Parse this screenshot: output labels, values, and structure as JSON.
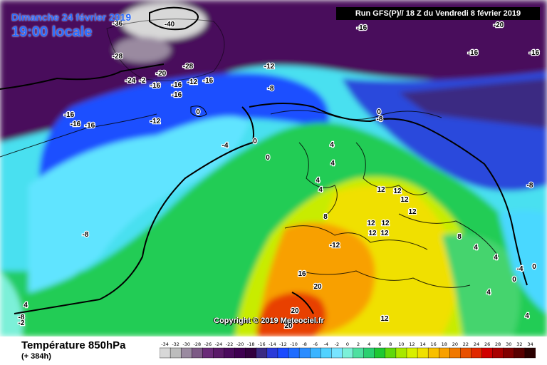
{
  "header": {
    "date_label": "Dimanche 24 février 2019",
    "time_label": "19:00 locale",
    "run_info": "Run GFS(P)// 18 Z du Vendredi 8 février 2019"
  },
  "footer": {
    "variable_title": "Température 850hPa",
    "lead_time": "(+ 384h)",
    "copyright": "Copyright © 2019 Meteociel.fr"
  },
  "map": {
    "labels": [
      {
        "text": "-40"
      },
      {
        "text": "-36"
      },
      {
        "text": "-28"
      },
      {
        "text": "-28"
      },
      {
        "text": "-24"
      },
      {
        "text": "-2"
      },
      {
        "text": "-20"
      },
      {
        "text": "-16"
      },
      {
        "text": "-16"
      },
      {
        "text": "-12"
      },
      {
        "text": "-16"
      },
      {
        "text": "-16"
      },
      {
        "text": "-12"
      },
      {
        "text": "-8"
      },
      {
        "text": "-16"
      },
      {
        "text": "-16"
      },
      {
        "text": "-16"
      },
      {
        "text": "-12"
      },
      {
        "text": "-8"
      },
      {
        "text": "-4"
      },
      {
        "text": "0"
      },
      {
        "text": "0"
      },
      {
        "text": "4"
      },
      {
        "text": "0"
      },
      {
        "text": "-16"
      },
      {
        "text": "-20"
      },
      {
        "text": "-16"
      },
      {
        "text": "-16"
      },
      {
        "text": "0"
      },
      {
        "text": "4"
      },
      {
        "text": "4"
      },
      {
        "text": "4"
      },
      {
        "text": "8"
      },
      {
        "text": "12"
      },
      {
        "text": "12"
      },
      {
        "text": "12"
      },
      {
        "text": "12"
      },
      {
        "text": "12"
      },
      {
        "text": "12"
      },
      {
        "text": "12"
      },
      {
        "text": "-12"
      },
      {
        "text": "12"
      },
      {
        "text": "16"
      },
      {
        "text": "20"
      },
      {
        "text": "20"
      },
      {
        "text": "20"
      },
      {
        "text": "12"
      },
      {
        "text": "8"
      },
      {
        "text": "4"
      },
      {
        "text": "4"
      },
      {
        "text": "4"
      },
      {
        "text": "0"
      },
      {
        "text": "4"
      },
      {
        "text": "4"
      },
      {
        "text": "-8"
      },
      {
        "text": "-8"
      },
      {
        "text": "0"
      },
      {
        "text": "-4"
      },
      {
        "text": "-8"
      },
      {
        "text": "-2"
      }
    ]
  },
  "scale": {
    "values": [
      "-34",
      "-32",
      "-30",
      "-28",
      "-26",
      "-24",
      "-22",
      "-20",
      "-18",
      "-16",
      "-14",
      "-12",
      "-10",
      "-8",
      "-6",
      "-4",
      "-2",
      "0",
      "2",
      "4",
      "6",
      "8",
      "10",
      "12",
      "14",
      "16",
      "18",
      "20",
      "22",
      "24",
      "26",
      "28",
      "30",
      "32",
      "34"
    ],
    "colors": [
      "#d8d8d8",
      "#bcbcbc",
      "#9a8aa0",
      "#7d5a86",
      "#6a2a78",
      "#5a1a68",
      "#4a0a5c",
      "#3e0050",
      "#32003e",
      "#3a2a82",
      "#2a3ad8",
      "#1a4aff",
      "#1e6cff",
      "#2a8cff",
      "#3ab4ff",
      "#52d2ff",
      "#78e4ff",
      "#7cf0d8",
      "#4ee0a0",
      "#2ad070",
      "#1ec832",
      "#60d80c",
      "#a8e800",
      "#d8f000",
      "#f0e000",
      "#f8c000",
      "#f8a000",
      "#f07800",
      "#e85000",
      "#e02800",
      "#d00000",
      "#a80000",
      "#800000",
      "#580000",
      "#2a0000"
    ]
  }
}
